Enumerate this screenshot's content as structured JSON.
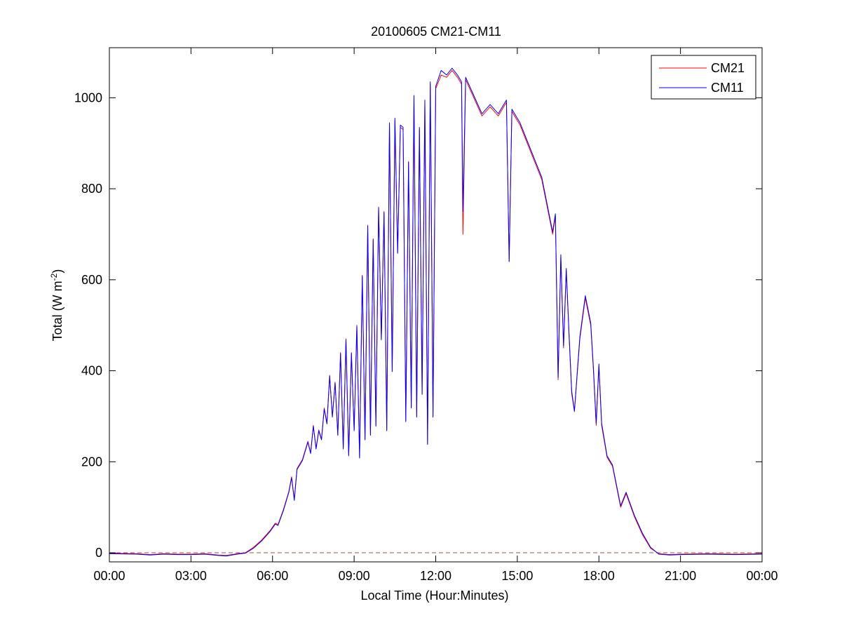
{
  "chart_data": {
    "type": "line",
    "title": "20100605 CM21-CM11",
    "xlabel": "Local Time (Hour:Minutes)",
    "ylabel_main": "Total (W m",
    "ylabel_sup": "-2",
    "ylabel_close": ")",
    "xlim": [
      0,
      24
    ],
    "ylim": [
      -20,
      1110
    ],
    "xticks": [
      0,
      3,
      6,
      9,
      12,
      15,
      18,
      21,
      24
    ],
    "xtick_labels": [
      "00:00",
      "03:00",
      "06:00",
      "09:00",
      "12:00",
      "15:00",
      "18:00",
      "21:00",
      "00:00"
    ],
    "yticks": [
      0,
      200,
      400,
      600,
      800,
      1000
    ],
    "ytick_labels": [
      "0",
      "200",
      "400",
      "600",
      "800",
      "1000"
    ],
    "grid": false,
    "legend_position": "top-right",
    "zero_line": {
      "y": 0,
      "style": "dashed",
      "color": "#a05050"
    },
    "series": [
      {
        "name": "CM21",
        "color": "#ff0000",
        "points": [
          [
            0.0,
            -1
          ],
          [
            1.0,
            -2
          ],
          [
            1.5,
            -4
          ],
          [
            2.0,
            -2
          ],
          [
            2.5,
            -3
          ],
          [
            3.0,
            -3
          ],
          [
            3.5,
            -2
          ],
          [
            4.0,
            -5
          ],
          [
            4.3,
            -6
          ],
          [
            4.7,
            -2
          ],
          [
            5.0,
            0
          ],
          [
            5.3,
            12
          ],
          [
            5.6,
            28
          ],
          [
            5.9,
            48
          ],
          [
            6.1,
            65
          ],
          [
            6.2,
            62
          ],
          [
            6.4,
            95
          ],
          [
            6.6,
            135
          ],
          [
            6.7,
            167
          ],
          [
            6.8,
            118
          ],
          [
            6.9,
            185
          ],
          [
            7.1,
            205
          ],
          [
            7.3,
            245
          ],
          [
            7.4,
            220
          ],
          [
            7.5,
            280
          ],
          [
            7.6,
            230
          ],
          [
            7.7,
            270
          ],
          [
            7.8,
            250
          ],
          [
            7.9,
            318
          ],
          [
            8.0,
            285
          ],
          [
            8.1,
            390
          ],
          [
            8.2,
            300
          ],
          [
            8.3,
            375
          ],
          [
            8.4,
            260
          ],
          [
            8.5,
            440
          ],
          [
            8.6,
            230
          ],
          [
            8.7,
            470
          ],
          [
            8.8,
            215
          ],
          [
            8.9,
            440
          ],
          [
            9.0,
            270
          ],
          [
            9.1,
            500
          ],
          [
            9.2,
            210
          ],
          [
            9.3,
            610
          ],
          [
            9.4,
            250
          ],
          [
            9.5,
            720
          ],
          [
            9.6,
            260
          ],
          [
            9.7,
            690
          ],
          [
            9.8,
            280
          ],
          [
            9.9,
            760
          ],
          [
            10.0,
            470
          ],
          [
            10.1,
            750
          ],
          [
            10.2,
            270
          ],
          [
            10.3,
            940
          ],
          [
            10.4,
            400
          ],
          [
            10.5,
            950
          ],
          [
            10.6,
            660
          ],
          [
            10.7,
            935
          ],
          [
            10.8,
            930
          ],
          [
            10.9,
            290
          ],
          [
            11.0,
            860
          ],
          [
            11.1,
            320
          ],
          [
            11.2,
            1000
          ],
          [
            11.3,
            300
          ],
          [
            11.4,
            930
          ],
          [
            11.5,
            350
          ],
          [
            11.6,
            990
          ],
          [
            11.7,
            240
          ],
          [
            11.8,
            1030
          ],
          [
            11.9,
            300
          ],
          [
            12.0,
            1020
          ],
          [
            12.2,
            1050
          ],
          [
            12.4,
            1045
          ],
          [
            12.6,
            1060
          ],
          [
            12.8,
            1045
          ],
          [
            12.95,
            1030
          ],
          [
            13.0,
            700
          ],
          [
            13.1,
            1040
          ],
          [
            13.4,
            1000
          ],
          [
            13.7,
            960
          ],
          [
            14.0,
            980
          ],
          [
            14.3,
            960
          ],
          [
            14.6,
            990
          ],
          [
            14.7,
            640
          ],
          [
            14.8,
            970
          ],
          [
            15.1,
            940
          ],
          [
            15.5,
            880
          ],
          [
            15.9,
            820
          ],
          [
            16.1,
            760
          ],
          [
            16.3,
            700
          ],
          [
            16.4,
            740
          ],
          [
            16.5,
            380
          ],
          [
            16.6,
            650
          ],
          [
            16.7,
            450
          ],
          [
            16.8,
            620
          ],
          [
            16.9,
            480
          ],
          [
            17.0,
            350
          ],
          [
            17.1,
            310
          ],
          [
            17.3,
            470
          ],
          [
            17.5,
            560
          ],
          [
            17.7,
            500
          ],
          [
            17.8,
            400
          ],
          [
            17.9,
            280
          ],
          [
            18.0,
            410
          ],
          [
            18.1,
            280
          ],
          [
            18.3,
            210
          ],
          [
            18.5,
            190
          ],
          [
            18.7,
            130
          ],
          [
            18.8,
            100
          ],
          [
            19.0,
            130
          ],
          [
            19.3,
            80
          ],
          [
            19.6,
            40
          ],
          [
            19.9,
            10
          ],
          [
            20.2,
            -2
          ],
          [
            20.6,
            -4
          ],
          [
            21.0,
            -3
          ],
          [
            22.0,
            -2
          ],
          [
            23.0,
            -3
          ],
          [
            24.0,
            -2
          ]
        ]
      },
      {
        "name": "CM11",
        "color": "#0000ff",
        "points": [
          [
            0.0,
            -2
          ],
          [
            1.0,
            -3
          ],
          [
            1.5,
            -5
          ],
          [
            2.0,
            -3
          ],
          [
            2.5,
            -4
          ],
          [
            3.0,
            -4
          ],
          [
            3.5,
            -3
          ],
          [
            4.0,
            -6
          ],
          [
            4.3,
            -7
          ],
          [
            4.7,
            -3
          ],
          [
            5.0,
            -1
          ],
          [
            5.3,
            10
          ],
          [
            5.6,
            26
          ],
          [
            5.9,
            46
          ],
          [
            6.1,
            63
          ],
          [
            6.2,
            60
          ],
          [
            6.4,
            93
          ],
          [
            6.6,
            133
          ],
          [
            6.7,
            165
          ],
          [
            6.8,
            115
          ],
          [
            6.9,
            183
          ],
          [
            7.1,
            203
          ],
          [
            7.3,
            243
          ],
          [
            7.4,
            218
          ],
          [
            7.5,
            278
          ],
          [
            7.6,
            228
          ],
          [
            7.7,
            268
          ],
          [
            7.8,
            248
          ],
          [
            7.9,
            316
          ],
          [
            8.0,
            283
          ],
          [
            8.1,
            388
          ],
          [
            8.2,
            298
          ],
          [
            8.3,
            373
          ],
          [
            8.4,
            258
          ],
          [
            8.5,
            438
          ],
          [
            8.6,
            228
          ],
          [
            8.7,
            468
          ],
          [
            8.8,
            213
          ],
          [
            8.9,
            438
          ],
          [
            9.0,
            268
          ],
          [
            9.1,
            498
          ],
          [
            9.2,
            208
          ],
          [
            9.3,
            608
          ],
          [
            9.4,
            248
          ],
          [
            9.5,
            718
          ],
          [
            9.6,
            258
          ],
          [
            9.7,
            688
          ],
          [
            9.8,
            278
          ],
          [
            9.9,
            758
          ],
          [
            10.0,
            468
          ],
          [
            10.1,
            748
          ],
          [
            10.2,
            268
          ],
          [
            10.3,
            945
          ],
          [
            10.4,
            398
          ],
          [
            10.5,
            955
          ],
          [
            10.6,
            658
          ],
          [
            10.7,
            940
          ],
          [
            10.8,
            935
          ],
          [
            10.9,
            288
          ],
          [
            11.0,
            858
          ],
          [
            11.1,
            318
          ],
          [
            11.2,
            1005
          ],
          [
            11.3,
            298
          ],
          [
            11.4,
            935
          ],
          [
            11.5,
            348
          ],
          [
            11.6,
            995
          ],
          [
            11.7,
            238
          ],
          [
            11.8,
            1035
          ],
          [
            11.9,
            298
          ],
          [
            12.0,
            1025
          ],
          [
            12.2,
            1060
          ],
          [
            12.4,
            1050
          ],
          [
            12.6,
            1065
          ],
          [
            12.8,
            1050
          ],
          [
            12.95,
            1035
          ],
          [
            13.0,
            750
          ],
          [
            13.1,
            1045
          ],
          [
            13.4,
            1005
          ],
          [
            13.7,
            965
          ],
          [
            14.0,
            985
          ],
          [
            14.3,
            965
          ],
          [
            14.6,
            995
          ],
          [
            14.7,
            640
          ],
          [
            14.8,
            975
          ],
          [
            15.1,
            945
          ],
          [
            15.5,
            885
          ],
          [
            15.9,
            825
          ],
          [
            16.1,
            765
          ],
          [
            16.3,
            705
          ],
          [
            16.4,
            745
          ],
          [
            16.5,
            385
          ],
          [
            16.6,
            655
          ],
          [
            16.7,
            455
          ],
          [
            16.8,
            625
          ],
          [
            16.9,
            485
          ],
          [
            17.0,
            355
          ],
          [
            17.1,
            312
          ],
          [
            17.3,
            475
          ],
          [
            17.5,
            565
          ],
          [
            17.7,
            505
          ],
          [
            17.8,
            405
          ],
          [
            17.9,
            285
          ],
          [
            18.0,
            415
          ],
          [
            18.1,
            285
          ],
          [
            18.3,
            213
          ],
          [
            18.5,
            193
          ],
          [
            18.7,
            133
          ],
          [
            18.8,
            103
          ],
          [
            19.0,
            133
          ],
          [
            19.3,
            83
          ],
          [
            19.6,
            43
          ],
          [
            19.9,
            12
          ],
          [
            20.2,
            -3
          ],
          [
            20.6,
            -5
          ],
          [
            21.0,
            -4
          ],
          [
            22.0,
            -3
          ],
          [
            23.0,
            -4
          ],
          [
            24.0,
            -3
          ]
        ]
      }
    ]
  }
}
